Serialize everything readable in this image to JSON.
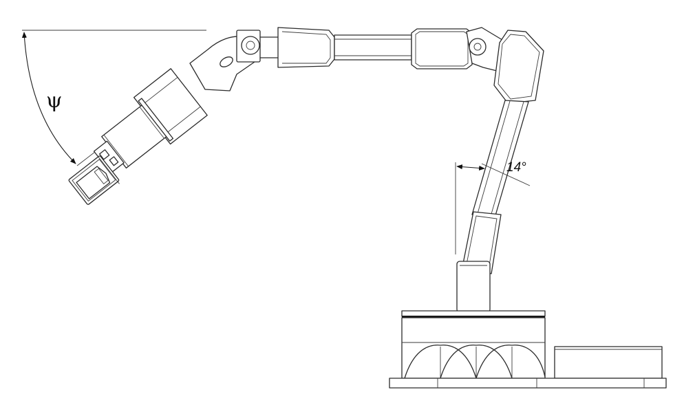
{
  "figure": {
    "psi_label": "ψ",
    "tilt_label": "14°"
  },
  "colors": {
    "line": "#2a2a2a",
    "background": "#ffffff"
  }
}
